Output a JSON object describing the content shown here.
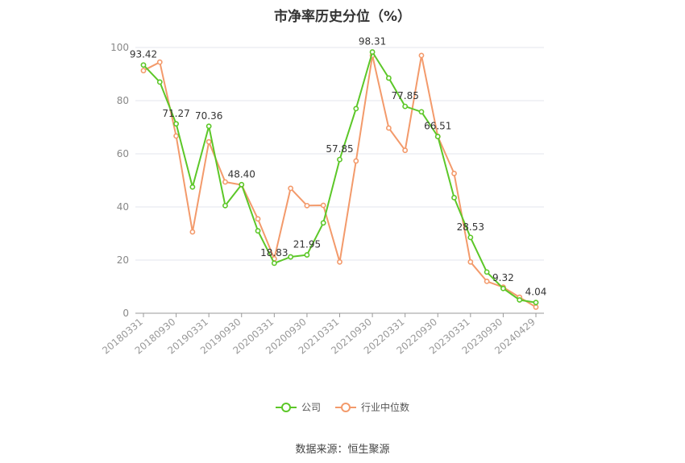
{
  "chart_data": {
    "type": "line",
    "title": "市净率历史分位（%）",
    "x": [
      "20180331",
      "20180630",
      "20180930",
      "20181231",
      "20190331",
      "20190630",
      "20190930",
      "20191231",
      "20200331",
      "20200630",
      "20200930",
      "20201231",
      "20210331",
      "20210630",
      "20210930",
      "20211231",
      "20220331",
      "20220630",
      "20220930",
      "20221231",
      "20230331",
      "20230630",
      "20230930",
      "20231231",
      "20240429"
    ],
    "x_tick_labels": [
      "20180331",
      "20180930",
      "20190331",
      "20190930",
      "20200331",
      "20200930",
      "20210331",
      "20210930",
      "20220331",
      "20220930",
      "20230331",
      "20230930",
      "20240429"
    ],
    "y_ticks": [
      0,
      20,
      40,
      60,
      80,
      100
    ],
    "ylim": [
      0,
      100
    ],
    "grid": "horizontal",
    "legend_position": "bottom",
    "series": [
      {
        "name": "公司",
        "color": "#5cc728",
        "values": [
          93.42,
          87.0,
          71.27,
          47.5,
          70.36,
          40.5,
          48.4,
          31.0,
          18.83,
          21.2,
          21.95,
          34.0,
          57.85,
          77.0,
          98.31,
          88.5,
          77.85,
          75.8,
          66.51,
          43.5,
          28.53,
          15.5,
          9.32,
          5.0,
          4.04
        ],
        "data_labels": {
          "0": "93.42",
          "2": "71.27",
          "4": "70.36",
          "6": "48.40",
          "8": "18.83",
          "10": "21.95",
          "12": "57.85",
          "14": "98.31",
          "16": "77.85",
          "18": "66.51",
          "20": "28.53",
          "22": "9.32",
          "24": "4.04"
        }
      },
      {
        "name": "行业中位数",
        "color": "#f39a6b",
        "values": [
          91.3,
          94.5,
          66.7,
          30.6,
          64.5,
          49.4,
          48.3,
          35.5,
          20.5,
          47.0,
          40.5,
          40.6,
          19.3,
          57.3,
          97.0,
          69.7,
          61.3,
          97.0,
          66.5,
          52.6,
          19.3,
          12.0,
          9.8,
          6.0,
          2.3
        ]
      }
    ]
  },
  "legend": {
    "company_label": "公司",
    "industry_label": "行业中位数"
  },
  "source": "数据来源：恒生聚源"
}
